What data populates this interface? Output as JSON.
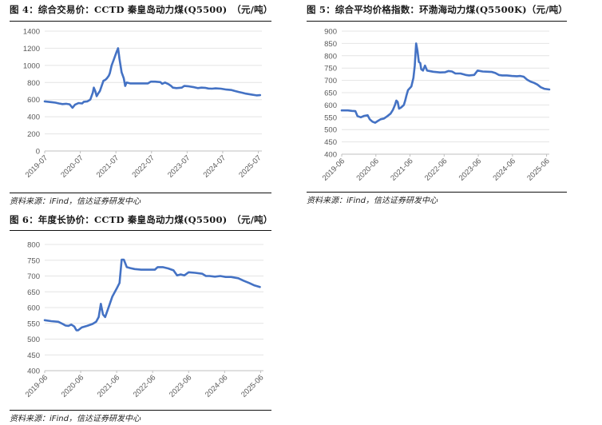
{
  "chart_data": [
    {
      "id": "fig4",
      "type": "line",
      "title": "图 4：综合交易价：CCTD 秦皇岛动力煤(Q5500)　（元/吨）",
      "source": "资料来源：iFind，信达证券研发中心",
      "xlabel": "",
      "ylabel": "",
      "ylim": [
        0,
        1400
      ],
      "yticks": [
        0,
        200,
        400,
        600,
        800,
        1000,
        1200,
        1400
      ],
      "xlim": [
        2019.5,
        2025.6
      ],
      "xticks": [
        {
          "label": "2019-07",
          "x": 2019.5
        },
        {
          "label": "2020-07",
          "x": 2020.5
        },
        {
          "label": "2021-07",
          "x": 2021.5
        },
        {
          "label": "2022-07",
          "x": 2022.5
        },
        {
          "label": "2023-07",
          "x": 2023.5
        },
        {
          "label": "2024-07",
          "x": 2024.5
        },
        {
          "label": "2025-07",
          "x": 2025.5
        }
      ],
      "grid": true,
      "color": "#4472c4",
      "series": [
        {
          "name": "",
          "points": [
            [
              2019.5,
              580
            ],
            [
              2019.6,
              575
            ],
            [
              2019.7,
              570
            ],
            [
              2019.8,
              565
            ],
            [
              2019.9,
              555
            ],
            [
              2020.0,
              548
            ],
            [
              2020.1,
              552
            ],
            [
              2020.2,
              545
            ],
            [
              2020.28,
              505
            ],
            [
              2020.35,
              540
            ],
            [
              2020.45,
              560
            ],
            [
              2020.55,
              555
            ],
            [
              2020.6,
              575
            ],
            [
              2020.7,
              580
            ],
            [
              2020.78,
              600
            ],
            [
              2020.85,
              680
            ],
            [
              2020.88,
              740
            ],
            [
              2020.92,
              700
            ],
            [
              2020.96,
              640
            ],
            [
              2021.0,
              670
            ],
            [
              2021.05,
              700
            ],
            [
              2021.1,
              760
            ],
            [
              2021.15,
              820
            ],
            [
              2021.2,
              830
            ],
            [
              2021.25,
              850
            ],
            [
              2021.3,
              880
            ],
            [
              2021.33,
              910
            ],
            [
              2021.38,
              1000
            ],
            [
              2021.45,
              1080
            ],
            [
              2021.52,
              1160
            ],
            [
              2021.56,
              1200
            ],
            [
              2021.6,
              1080
            ],
            [
              2021.66,
              920
            ],
            [
              2021.72,
              850
            ],
            [
              2021.76,
              760
            ],
            [
              2021.8,
              800
            ],
            [
              2021.9,
              790
            ],
            [
              2022.0,
              790
            ],
            [
              2022.2,
              790
            ],
            [
              2022.4,
              790
            ],
            [
              2022.48,
              810
            ],
            [
              2022.6,
              810
            ],
            [
              2022.75,
              805
            ],
            [
              2022.8,
              785
            ],
            [
              2022.88,
              800
            ],
            [
              2022.98,
              780
            ],
            [
              2023.05,
              760
            ],
            [
              2023.1,
              740
            ],
            [
              2023.2,
              735
            ],
            [
              2023.35,
              740
            ],
            [
              2023.42,
              760
            ],
            [
              2023.55,
              755
            ],
            [
              2023.7,
              745
            ],
            [
              2023.8,
              735
            ],
            [
              2023.9,
              740
            ],
            [
              2024.0,
              738
            ],
            [
              2024.1,
              730
            ],
            [
              2024.2,
              728
            ],
            [
              2024.3,
              732
            ],
            [
              2024.45,
              728
            ],
            [
              2024.6,
              718
            ],
            [
              2024.75,
              712
            ],
            [
              2024.85,
              700
            ],
            [
              2024.95,
              690
            ],
            [
              2025.05,
              680
            ],
            [
              2025.15,
              670
            ],
            [
              2025.3,
              660
            ],
            [
              2025.45,
              650
            ],
            [
              2025.55,
              652
            ]
          ]
        }
      ]
    },
    {
      "id": "fig5",
      "type": "line",
      "title": "图 5：综合平均价格指数：环渤海动力煤(Q5500K)（元/吨）",
      "source": "资料来源：iFind，信达证券研发中心",
      "xlabel": "",
      "ylabel": "",
      "ylim": [
        400,
        900
      ],
      "yticks": [
        400,
        450,
        500,
        550,
        600,
        650,
        700,
        750,
        800,
        850,
        900
      ],
      "xlim": [
        2019.42,
        2025.5
      ],
      "xticks": [
        {
          "label": "2019-06",
          "x": 2019.42
        },
        {
          "label": "2020-06",
          "x": 2020.42
        },
        {
          "label": "2021-06",
          "x": 2021.42
        },
        {
          "label": "2022-06",
          "x": 2022.42
        },
        {
          "label": "2023-06",
          "x": 2023.42
        },
        {
          "label": "2024-06",
          "x": 2024.42
        },
        {
          "label": "2025-06",
          "x": 2025.42
        }
      ],
      "grid": true,
      "color": "#4472c4",
      "series": [
        {
          "name": "",
          "points": [
            [
              2019.42,
              578
            ],
            [
              2019.6,
              578
            ],
            [
              2019.72,
              576
            ],
            [
              2019.82,
              575
            ],
            [
              2019.88,
              555
            ],
            [
              2019.98,
              550
            ],
            [
              2020.08,
              556
            ],
            [
              2020.18,
              558
            ],
            [
              2020.24,
              542
            ],
            [
              2020.32,
              532
            ],
            [
              2020.4,
              528
            ],
            [
              2020.48,
              535
            ],
            [
              2020.56,
              542
            ],
            [
              2020.66,
              545
            ],
            [
              2020.76,
              555
            ],
            [
              2020.85,
              565
            ],
            [
              2020.92,
              580
            ],
            [
              2020.98,
              600
            ],
            [
              2021.02,
              618
            ],
            [
              2021.06,
              612
            ],
            [
              2021.1,
              585
            ],
            [
              2021.16,
              590
            ],
            [
              2021.24,
              600
            ],
            [
              2021.28,
              618
            ],
            [
              2021.32,
              640
            ],
            [
              2021.36,
              660
            ],
            [
              2021.46,
              675
            ],
            [
              2021.52,
              710
            ],
            [
              2021.56,
              760
            ],
            [
              2021.6,
              850
            ],
            [
              2021.64,
              820
            ],
            [
              2021.68,
              775
            ],
            [
              2021.72,
              770
            ],
            [
              2021.75,
              745
            ],
            [
              2021.8,
              740
            ],
            [
              2021.86,
              760
            ],
            [
              2021.92,
              740
            ],
            [
              2022.1,
              735
            ],
            [
              2022.3,
              732
            ],
            [
              2022.45,
              733
            ],
            [
              2022.55,
              738
            ],
            [
              2022.65,
              736
            ],
            [
              2022.75,
              728
            ],
            [
              2022.9,
              728
            ],
            [
              2023.05,
              722
            ],
            [
              2023.15,
              720
            ],
            [
              2023.3,
              722
            ],
            [
              2023.4,
              740
            ],
            [
              2023.55,
              736
            ],
            [
              2023.7,
              735
            ],
            [
              2023.82,
              734
            ],
            [
              2023.92,
              730
            ],
            [
              2024.02,
              722
            ],
            [
              2024.12,
              720
            ],
            [
              2024.25,
              720
            ],
            [
              2024.4,
              718
            ],
            [
              2024.55,
              717
            ],
            [
              2024.65,
              718
            ],
            [
              2024.75,
              715
            ],
            [
              2024.85,
              703
            ],
            [
              2024.95,
              695
            ],
            [
              2025.05,
              690
            ],
            [
              2025.15,
              683
            ],
            [
              2025.25,
              672
            ],
            [
              2025.35,
              666
            ],
            [
              2025.5,
              663
            ]
          ]
        }
      ]
    },
    {
      "id": "fig6",
      "type": "line",
      "title": "图 6：年度长协价：CCTD 秦皇岛动力煤(Q5500)　（元/吨）",
      "source": "资料来源：iFind，信达证券研发中心",
      "xlabel": "",
      "ylabel": "",
      "ylim": [
        400,
        800
      ],
      "yticks": [
        400,
        450,
        500,
        550,
        600,
        650,
        700,
        750,
        800
      ],
      "xlim": [
        2019.42,
        2025.5
      ],
      "xticks": [
        {
          "label": "2019-06",
          "x": 2019.42
        },
        {
          "label": "2020-06",
          "x": 2020.42
        },
        {
          "label": "2021-06",
          "x": 2021.42
        },
        {
          "label": "2022-06",
          "x": 2022.42
        },
        {
          "label": "2023-06",
          "x": 2023.42
        },
        {
          "label": "2024-06",
          "x": 2024.42
        },
        {
          "label": "2025-06",
          "x": 2025.42
        }
      ],
      "grid": true,
      "color": "#4472c4",
      "series": [
        {
          "name": "",
          "points": [
            [
              2019.42,
              560
            ],
            [
              2019.6,
              557
            ],
            [
              2019.8,
              555
            ],
            [
              2019.92,
              548
            ],
            [
              2020.0,
              543
            ],
            [
              2020.08,
              542
            ],
            [
              2020.16,
              546
            ],
            [
              2020.24,
              540
            ],
            [
              2020.3,
              528
            ],
            [
              2020.35,
              528
            ],
            [
              2020.45,
              537
            ],
            [
              2020.6,
              542
            ],
            [
              2020.75,
              548
            ],
            [
              2020.85,
              555
            ],
            [
              2020.92,
              570
            ],
            [
              2020.98,
              612
            ],
            [
              2021.04,
              578
            ],
            [
              2021.1,
              570
            ],
            [
              2021.2,
              602
            ],
            [
              2021.3,
              635
            ],
            [
              2021.42,
              660
            ],
            [
              2021.5,
              678
            ],
            [
              2021.56,
              752
            ],
            [
              2021.62,
              752
            ],
            [
              2021.7,
              728
            ],
            [
              2021.8,
              725
            ],
            [
              2021.92,
              722
            ],
            [
              2022.1,
              720
            ],
            [
              2022.3,
              720
            ],
            [
              2022.48,
              720
            ],
            [
              2022.56,
              728
            ],
            [
              2022.7,
              728
            ],
            [
              2022.85,
              724
            ],
            [
              2023.0,
              718
            ],
            [
              2023.1,
              702
            ],
            [
              2023.2,
              705
            ],
            [
              2023.3,
              702
            ],
            [
              2023.42,
              712
            ],
            [
              2023.6,
              710
            ],
            [
              2023.8,
              707
            ],
            [
              2023.9,
              700
            ],
            [
              2024.0,
              700
            ],
            [
              2024.15,
              698
            ],
            [
              2024.3,
              700
            ],
            [
              2024.45,
              697
            ],
            [
              2024.6,
              697
            ],
            [
              2024.8,
              693
            ],
            [
              2024.95,
              685
            ],
            [
              2025.1,
              678
            ],
            [
              2025.25,
              670
            ],
            [
              2025.4,
              665
            ]
          ]
        }
      ]
    }
  ]
}
